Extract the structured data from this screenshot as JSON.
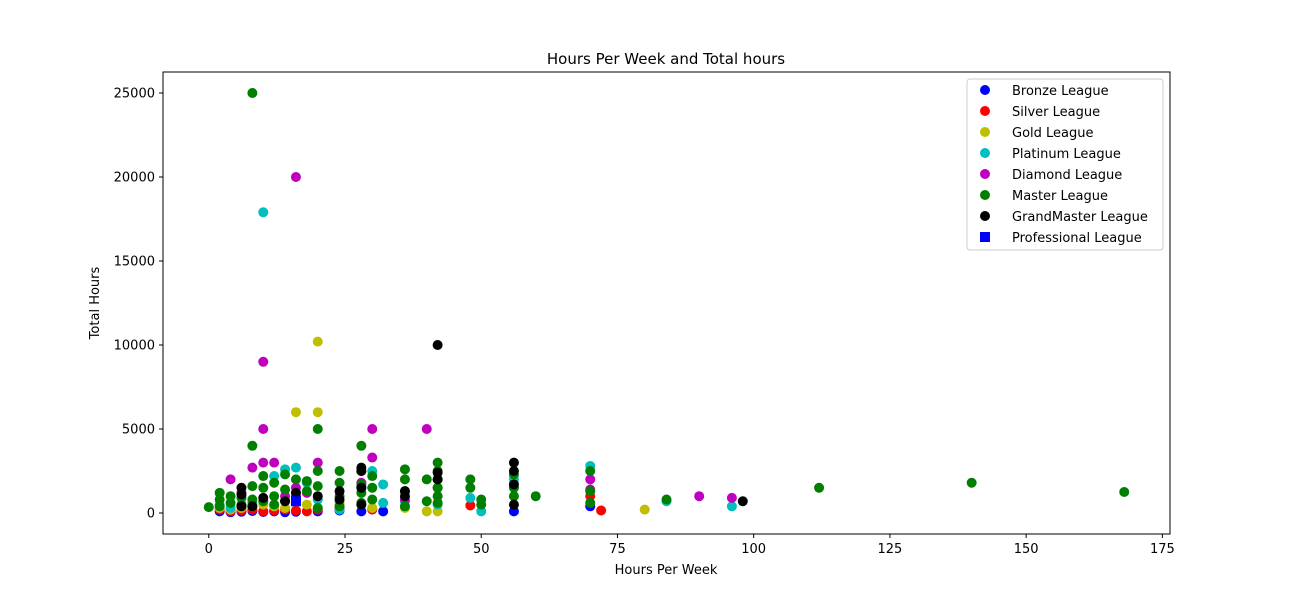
{
  "chart_data": {
    "type": "scatter",
    "title": "Hours Per Week and Total hours",
    "xlabel": "Hours Per Week",
    "ylabel": "Total Hours",
    "xlim": [
      -8.4,
      176.4
    ],
    "ylim": [
      -1250,
      26250
    ],
    "xticks": [
      0,
      25,
      50,
      75,
      100,
      125,
      150,
      175
    ],
    "yticks": [
      0,
      5000,
      10000,
      15000,
      20000,
      25000
    ],
    "grid": false,
    "legend_position": "top-right",
    "series": [
      {
        "name": "Bronze League",
        "color": "#0000ff",
        "marker": "circle",
        "points": [
          [
            2,
            100
          ],
          [
            4,
            50
          ],
          [
            6,
            80
          ],
          [
            8,
            120
          ],
          [
            10,
            60
          ],
          [
            12,
            100
          ],
          [
            14,
            50
          ],
          [
            16,
            80
          ],
          [
            20,
            100
          ],
          [
            24,
            150
          ],
          [
            28,
            100
          ],
          [
            32,
            100
          ],
          [
            56,
            100
          ],
          [
            70,
            400
          ]
        ]
      },
      {
        "name": "Silver League",
        "color": "#ff0000",
        "marker": "circle",
        "points": [
          [
            2,
            200
          ],
          [
            4,
            100
          ],
          [
            6,
            150
          ],
          [
            8,
            200
          ],
          [
            10,
            100
          ],
          [
            12,
            150
          ],
          [
            14,
            200
          ],
          [
            16,
            150
          ],
          [
            18,
            100
          ],
          [
            20,
            200
          ],
          [
            24,
            300
          ],
          [
            30,
            200
          ],
          [
            48,
            450
          ],
          [
            70,
            1000
          ],
          [
            72,
            150
          ]
        ]
      },
      {
        "name": "Gold League",
        "color": "#bfbf00",
        "marker": "circle",
        "points": [
          [
            2,
            300
          ],
          [
            4,
            200
          ],
          [
            6,
            300
          ],
          [
            8,
            400
          ],
          [
            10,
            500
          ],
          [
            12,
            400
          ],
          [
            14,
            300
          ],
          [
            16,
            6000
          ],
          [
            18,
            500
          ],
          [
            20,
            10200
          ],
          [
            20,
            6000
          ],
          [
            24,
            600
          ],
          [
            28,
            500
          ],
          [
            30,
            300
          ],
          [
            36,
            300
          ],
          [
            40,
            100
          ],
          [
            42,
            100
          ],
          [
            80,
            200
          ]
        ]
      },
      {
        "name": "Platinum League",
        "color": "#00bfbf",
        "marker": "circle",
        "points": [
          [
            2,
            500
          ],
          [
            4,
            300
          ],
          [
            6,
            400
          ],
          [
            8,
            600
          ],
          [
            10,
            17900
          ],
          [
            12,
            2200
          ],
          [
            14,
            2600
          ],
          [
            16,
            2700
          ],
          [
            18,
            1800
          ],
          [
            20,
            800
          ],
          [
            24,
            200
          ],
          [
            28,
            1500
          ],
          [
            30,
            2500
          ],
          [
            32,
            1700
          ],
          [
            32,
            600
          ],
          [
            36,
            700
          ],
          [
            42,
            500
          ],
          [
            48,
            900
          ],
          [
            50,
            100
          ],
          [
            56,
            2000
          ],
          [
            70,
            2800
          ],
          [
            84,
            700
          ],
          [
            96,
            400
          ]
        ]
      },
      {
        "name": "Diamond League",
        "color": "#bf00bf",
        "marker": "circle",
        "points": [
          [
            4,
            2000
          ],
          [
            6,
            1200
          ],
          [
            8,
            2700
          ],
          [
            10,
            9000
          ],
          [
            10,
            5000
          ],
          [
            10,
            3000
          ],
          [
            12,
            3000
          ],
          [
            14,
            1000
          ],
          [
            16,
            20000
          ],
          [
            16,
            1500
          ],
          [
            18,
            1200
          ],
          [
            20,
            3000
          ],
          [
            28,
            1800
          ],
          [
            30,
            5000
          ],
          [
            30,
            3300
          ],
          [
            36,
            800
          ],
          [
            40,
            5000
          ],
          [
            42,
            1500
          ],
          [
            70,
            2000
          ],
          [
            70,
            1400
          ],
          [
            90,
            1000
          ],
          [
            96,
            900
          ]
        ]
      },
      {
        "name": "Master League",
        "color": "#007f00",
        "marker": "circle",
        "points": [
          [
            0,
            350
          ],
          [
            2,
            1200
          ],
          [
            2,
            800
          ],
          [
            2,
            400
          ],
          [
            4,
            1000
          ],
          [
            4,
            600
          ],
          [
            6,
            900
          ],
          [
            6,
            500
          ],
          [
            8,
            25000
          ],
          [
            8,
            4000
          ],
          [
            8,
            1600
          ],
          [
            8,
            800
          ],
          [
            10,
            2200
          ],
          [
            10,
            1500
          ],
          [
            10,
            700
          ],
          [
            12,
            1800
          ],
          [
            12,
            1000
          ],
          [
            12,
            500
          ],
          [
            14,
            2300
          ],
          [
            14,
            1400
          ],
          [
            14,
            700
          ],
          [
            16,
            2000
          ],
          [
            16,
            1000
          ],
          [
            18,
            1900
          ],
          [
            18,
            1300
          ],
          [
            20,
            5000
          ],
          [
            20,
            2500
          ],
          [
            20,
            1600
          ],
          [
            20,
            300
          ],
          [
            24,
            2500
          ],
          [
            24,
            1800
          ],
          [
            24,
            1000
          ],
          [
            24,
            400
          ],
          [
            28,
            4000
          ],
          [
            28,
            2500
          ],
          [
            28,
            1700
          ],
          [
            28,
            1200
          ],
          [
            28,
            600
          ],
          [
            30,
            2200
          ],
          [
            30,
            1500
          ],
          [
            30,
            800
          ],
          [
            36,
            2600
          ],
          [
            36,
            2000
          ],
          [
            36,
            1300
          ],
          [
            36,
            400
          ],
          [
            40,
            2000
          ],
          [
            40,
            700
          ],
          [
            42,
            3000
          ],
          [
            42,
            2500
          ],
          [
            42,
            2000
          ],
          [
            42,
            1500
          ],
          [
            42,
            1000
          ],
          [
            42,
            600
          ],
          [
            48,
            2000
          ],
          [
            48,
            1500
          ],
          [
            50,
            800
          ],
          [
            50,
            500
          ],
          [
            56,
            2300
          ],
          [
            56,
            1500
          ],
          [
            56,
            1000
          ],
          [
            60,
            1000
          ],
          [
            70,
            2500
          ],
          [
            70,
            1300
          ],
          [
            70,
            600
          ],
          [
            84,
            800
          ],
          [
            112,
            1500
          ],
          [
            140,
            1800
          ],
          [
            168,
            1250
          ]
        ]
      },
      {
        "name": "GrandMaster League",
        "color": "#000000",
        "marker": "circle",
        "points": [
          [
            6,
            1500
          ],
          [
            6,
            1100
          ],
          [
            6,
            400
          ],
          [
            8,
            400
          ],
          [
            10,
            900
          ],
          [
            14,
            700
          ],
          [
            16,
            1200
          ],
          [
            20,
            1000
          ],
          [
            24,
            1300
          ],
          [
            24,
            800
          ],
          [
            28,
            2700
          ],
          [
            28,
            2500
          ],
          [
            28,
            1500
          ],
          [
            28,
            500
          ],
          [
            36,
            1300
          ],
          [
            36,
            1000
          ],
          [
            42,
            10000
          ],
          [
            42,
            2400
          ],
          [
            42,
            2000
          ],
          [
            56,
            3000
          ],
          [
            56,
            2500
          ],
          [
            56,
            1700
          ],
          [
            56,
            500
          ],
          [
            98,
            700
          ]
        ]
      },
      {
        "name": "Professional League",
        "color": "#0000ff",
        "marker": "square",
        "points": [
          [
            16,
            700
          ]
        ]
      }
    ]
  }
}
